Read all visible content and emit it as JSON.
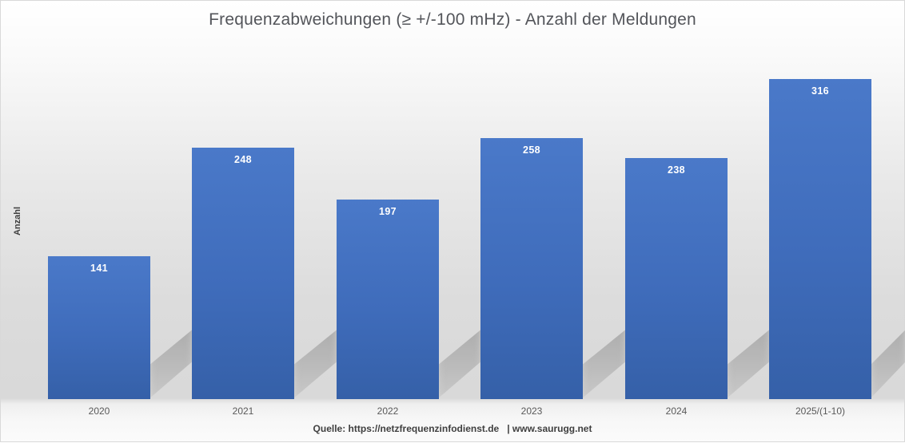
{
  "chart_data": {
    "type": "bar",
    "title": "Frequenzabweichungen (≥ +/-100 mHz) - Anzahl der Meldungen",
    "ylabel": "Anzahl",
    "xlabel": "",
    "categories": [
      "2020",
      "2021",
      "2022",
      "2023",
      "2024",
      "2025/(1-10)"
    ],
    "values": [
      141,
      248,
      197,
      258,
      238,
      316
    ],
    "data_label_color": "#ffffff",
    "bar_color_top": "#4a79c9",
    "bar_color_bottom": "#3560a8",
    "title_color": "#53555a",
    "tick_label_color": "#595959",
    "ylim": [
      0,
      350
    ],
    "grid": false,
    "legend": false,
    "source": "Quelle: https://netzfrequenzinfodienst.de   | www.saurugg.net"
  }
}
